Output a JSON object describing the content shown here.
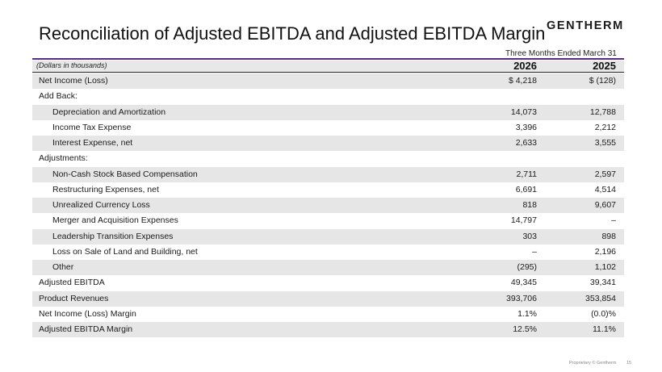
{
  "header": {
    "title": "Reconciliation of Adjusted EBITDA and Adjusted EBITDA Margin",
    "logo_text": "GENTHERM"
  },
  "table": {
    "period_label": "Three Months Ended March 31",
    "units_label": "(Dollars in thousands)",
    "col1": "2026",
    "col2": "2025",
    "rows": [
      {
        "label": "Net Income (Loss)",
        "v1": "$ 4,218",
        "v2": "$ (128)"
      },
      {
        "label": "Add Back:",
        "v1": "",
        "v2": ""
      },
      {
        "label": "Depreciation and Amortization",
        "v1": "14,073",
        "v2": "12,788"
      },
      {
        "label": "Income Tax Expense",
        "v1": "3,396",
        "v2": "2,212"
      },
      {
        "label": "Interest Expense, net",
        "v1": "2,633",
        "v2": "3,555"
      },
      {
        "label": "Adjustments:",
        "v1": "",
        "v2": ""
      },
      {
        "label": "Non-Cash Stock Based Compensation",
        "v1": "2,711",
        "v2": "2,597"
      },
      {
        "label": "Restructuring Expenses, net",
        "v1": "6,691",
        "v2": "4,514"
      },
      {
        "label": "Unrealized Currency Loss",
        "v1": "818",
        "v2": "9,607"
      },
      {
        "label": "Merger and Acquisition Expenses",
        "v1": "14,797",
        "v2": "–"
      },
      {
        "label": "Leadership Transition Expenses",
        "v1": "303",
        "v2": "898"
      },
      {
        "label": "Loss on Sale of Land and Building, net",
        "v1": "–",
        "v2": "2,196"
      },
      {
        "label": "Other",
        "v1": "(295)",
        "v2": "1,102"
      },
      {
        "label": "Adjusted EBITDA",
        "v1": "49,345",
        "v2": "39,341"
      },
      {
        "label": "Product Revenues",
        "v1": "393,706",
        "v2": "353,854"
      },
      {
        "label": "Net Income (Loss) Margin",
        "v1": "1.1%",
        "v2": "(0.0)%"
      },
      {
        "label": "Adjusted EBITDA Margin",
        "v1": "12.5%",
        "v2": "11.1%"
      }
    ]
  },
  "footer": {
    "proprietary": "Proprietary © Gentherm",
    "page_number": "15"
  }
}
